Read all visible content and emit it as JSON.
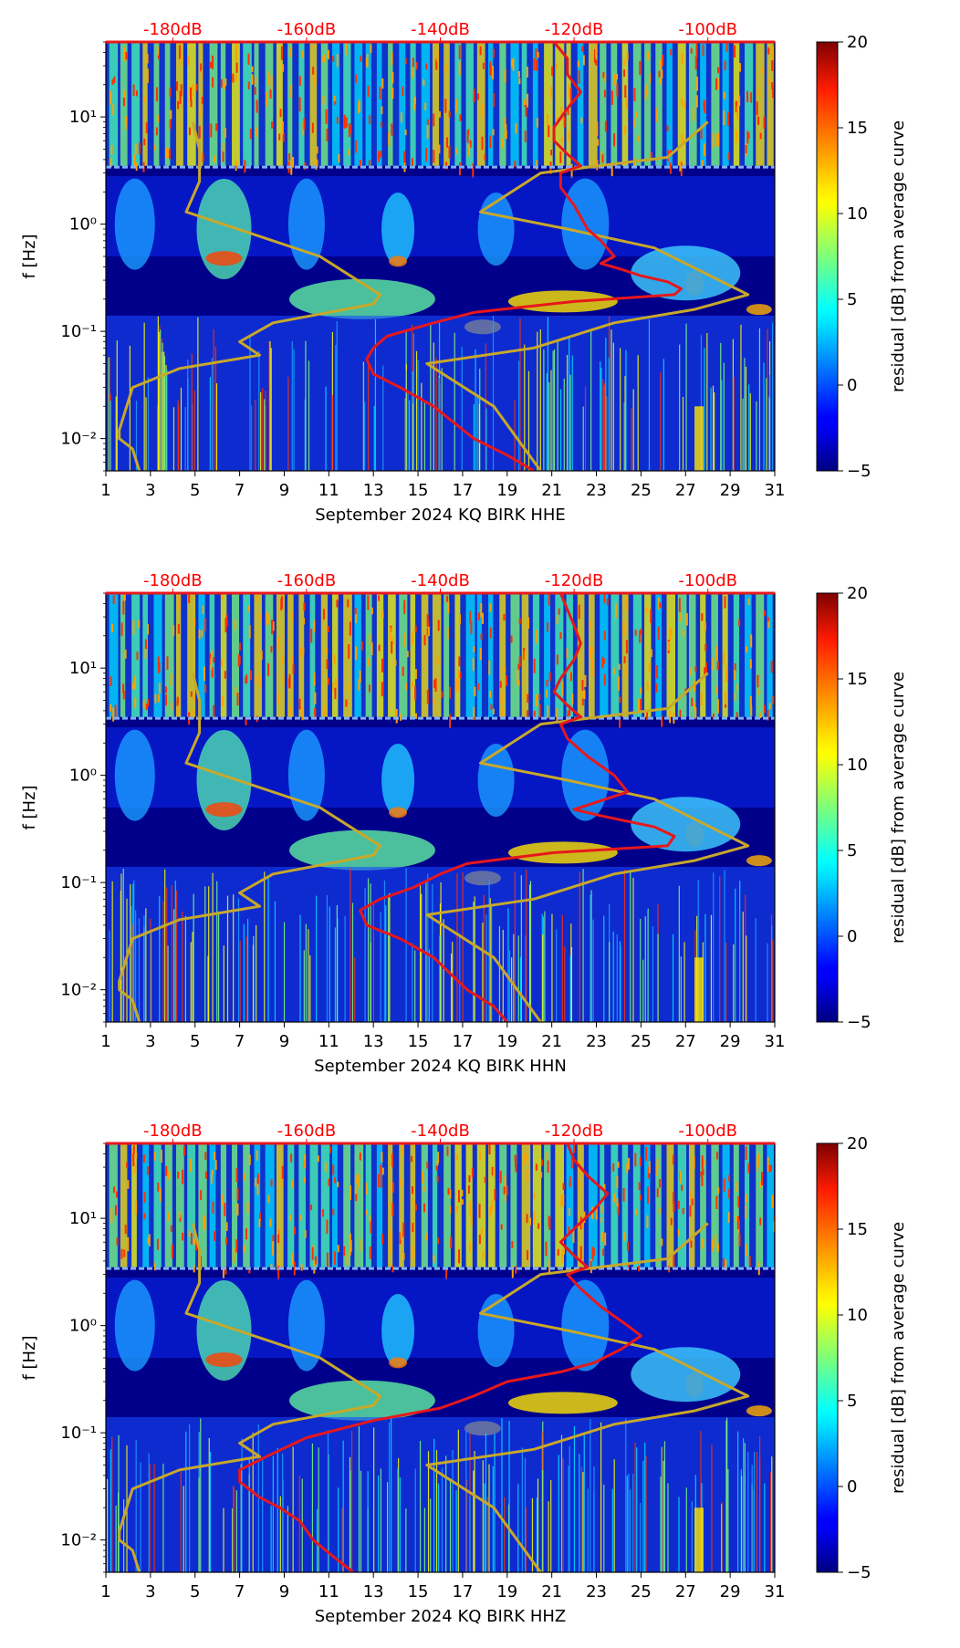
{
  "figure": {
    "colorbar": {
      "label": "residual [dB] from average curve",
      "range": [
        -5,
        20
      ],
      "ticks": [
        "20",
        "15",
        "10",
        "5",
        "0",
        "−5"
      ],
      "tick_values": [
        20,
        15,
        10,
        5,
        0,
        -5
      ],
      "colormap": "jet"
    },
    "colors": {
      "psd_curve": "#e8171b",
      "reference_curve": "#c8a82a",
      "db_labels": "#ff0000",
      "background_dark": "#00008b"
    }
  },
  "chart_data": [
    {
      "type": "heatmap",
      "title": "",
      "xlabel": "September 2024 KQ BIRK  HHE",
      "ylabel": "f [Hz]",
      "x_ticks": [
        "1",
        "3",
        "5",
        "7",
        "9",
        "11",
        "13",
        "15",
        "17",
        "19",
        "21",
        "23",
        "25",
        "27",
        "29",
        "31"
      ],
      "x_range": [
        1,
        31
      ],
      "y_scale": "log",
      "y_range": [
        0.005,
        50
      ],
      "y_ticks": [
        {
          "value": 0.01,
          "label": "10⁻²"
        },
        {
          "value": 0.1,
          "label": "10⁻¹"
        },
        {
          "value": 1,
          "label": "10⁰"
        },
        {
          "value": 10,
          "label": "10¹"
        }
      ],
      "top_axis": {
        "labels": [
          "-180dB",
          "-160dB",
          "-140dB",
          "-120dB",
          "-100dB"
        ],
        "values": [
          -180,
          -160,
          -140,
          -120,
          -100
        ],
        "range": [
          -190,
          -90
        ]
      },
      "psd_curve": {
        "name": "",
        "points": [
          [
            -123,
            50
          ],
          [
            -121,
            35
          ],
          [
            -121,
            25
          ],
          [
            -119,
            17
          ],
          [
            -121,
            12
          ],
          [
            -123,
            8
          ],
          [
            -123,
            6
          ],
          [
            -121,
            4.5
          ],
          [
            -119,
            3.5
          ],
          [
            -122,
            3
          ],
          [
            -122,
            2.2
          ],
          [
            -120,
            1.5
          ],
          [
            -118,
            0.9
          ],
          [
            -116,
            0.7
          ],
          [
            -114,
            0.5
          ],
          [
            -116,
            0.43
          ],
          [
            -113,
            0.38
          ],
          [
            -110,
            0.33
          ],
          [
            -106,
            0.29
          ],
          [
            -104,
            0.25
          ],
          [
            -105,
            0.22
          ],
          [
            -120,
            0.19
          ],
          [
            -135,
            0.15
          ],
          [
            -141,
            0.12
          ],
          [
            -148,
            0.09
          ],
          [
            -150,
            0.07
          ],
          [
            -151,
            0.055
          ],
          [
            -150,
            0.04
          ],
          [
            -146,
            0.03
          ],
          [
            -141,
            0.02
          ],
          [
            -135,
            0.01
          ],
          [
            -130,
            0.007
          ],
          [
            -126,
            0.005
          ]
        ]
      },
      "reference_curve": {
        "name": "",
        "points": [
          [
            -100,
            9
          ],
          [
            -106,
            4.2
          ],
          [
            -125,
            3.0
          ],
          [
            -134,
            1.3
          ],
          [
            -121,
            0.9
          ],
          [
            -108,
            0.6
          ],
          [
            -94,
            0.22
          ],
          [
            -102,
            0.16
          ],
          [
            -114,
            0.12
          ],
          [
            -126,
            0.07
          ],
          [
            -142,
            0.05
          ],
          [
            -132,
            0.02
          ],
          [
            -125,
            0.005
          ]
        ]
      },
      "reference_curve_left": {
        "points": [
          [
            -177,
            9
          ],
          [
            -176,
            5
          ],
          [
            -176,
            2.5
          ],
          [
            -178,
            1.3
          ],
          [
            -158,
            0.5
          ],
          [
            -149,
            0.22
          ],
          [
            -150,
            0.18
          ],
          [
            -165,
            0.12
          ],
          [
            -170,
            0.08
          ],
          [
            -167,
            0.06
          ],
          [
            -179,
            0.045
          ],
          [
            -186,
            0.03
          ],
          [
            -188,
            0.012
          ],
          [
            -188,
            0.01
          ],
          [
            -186,
            0.008
          ],
          [
            -185,
            0.005
          ]
        ]
      }
    },
    {
      "type": "heatmap",
      "title": "",
      "xlabel": "September 2024 KQ BIRK  HHN",
      "ylabel": "f [Hz]",
      "x_ticks": [
        "1",
        "3",
        "5",
        "7",
        "9",
        "11",
        "13",
        "15",
        "17",
        "19",
        "21",
        "23",
        "25",
        "27",
        "29",
        "31"
      ],
      "x_range": [
        1,
        31
      ],
      "y_scale": "log",
      "y_range": [
        0.005,
        50
      ],
      "y_ticks": [
        {
          "value": 0.01,
          "label": "10⁻²"
        },
        {
          "value": 0.1,
          "label": "10⁻¹"
        },
        {
          "value": 1,
          "label": "10⁰"
        },
        {
          "value": 10,
          "label": "10¹"
        }
      ],
      "top_axis": {
        "labels": [
          "-180dB",
          "-160dB",
          "-140dB",
          "-120dB",
          "-100dB"
        ],
        "values": [
          -180,
          -160,
          -140,
          -120,
          -100
        ],
        "range": [
          -190,
          -90
        ]
      },
      "psd_curve": {
        "name": "",
        "points": [
          [
            -122,
            50
          ],
          [
            -121,
            35
          ],
          [
            -120,
            25
          ],
          [
            -119,
            17
          ],
          [
            -120,
            12
          ],
          [
            -122,
            8
          ],
          [
            -123,
            6
          ],
          [
            -121,
            4.5
          ],
          [
            -119,
            3.5
          ],
          [
            -122,
            3
          ],
          [
            -121,
            2.2
          ],
          [
            -118,
            1.5
          ],
          [
            -114,
            1.0
          ],
          [
            -112,
            0.7
          ],
          [
            -120,
            0.48
          ],
          [
            -116,
            0.42
          ],
          [
            -108,
            0.33
          ],
          [
            -105,
            0.27
          ],
          [
            -106,
            0.22
          ],
          [
            -123,
            0.19
          ],
          [
            -136,
            0.15
          ],
          [
            -140,
            0.12
          ],
          [
            -144,
            0.09
          ],
          [
            -149,
            0.07
          ],
          [
            -152,
            0.055
          ],
          [
            -151,
            0.04
          ],
          [
            -146,
            0.03
          ],
          [
            -141,
            0.02
          ],
          [
            -136,
            0.01
          ],
          [
            -132,
            0.007
          ],
          [
            -130,
            0.005
          ]
        ]
      },
      "reference_curve": {
        "name": "",
        "points": [
          [
            -100,
            9
          ],
          [
            -106,
            4.2
          ],
          [
            -125,
            3.0
          ],
          [
            -134,
            1.3
          ],
          [
            -121,
            0.9
          ],
          [
            -108,
            0.6
          ],
          [
            -94,
            0.22
          ],
          [
            -102,
            0.16
          ],
          [
            -114,
            0.12
          ],
          [
            -126,
            0.07
          ],
          [
            -142,
            0.05
          ],
          [
            -132,
            0.02
          ],
          [
            -125,
            0.005
          ]
        ]
      },
      "reference_curve_left": {
        "points": [
          [
            -177,
            9
          ],
          [
            -176,
            5
          ],
          [
            -176,
            2.5
          ],
          [
            -178,
            1.3
          ],
          [
            -158,
            0.5
          ],
          [
            -149,
            0.22
          ],
          [
            -150,
            0.18
          ],
          [
            -165,
            0.12
          ],
          [
            -170,
            0.08
          ],
          [
            -167,
            0.06
          ],
          [
            -179,
            0.045
          ],
          [
            -186,
            0.03
          ],
          [
            -188,
            0.012
          ],
          [
            -188,
            0.01
          ],
          [
            -186,
            0.008
          ],
          [
            -185,
            0.005
          ]
        ]
      }
    },
    {
      "type": "heatmap",
      "title": "",
      "xlabel": "September 2024 KQ BIRK  HHZ",
      "ylabel": "f [Hz]",
      "x_ticks": [
        "1",
        "3",
        "5",
        "7",
        "9",
        "11",
        "13",
        "15",
        "17",
        "19",
        "21",
        "23",
        "25",
        "27",
        "29",
        "31"
      ],
      "x_range": [
        1,
        31
      ],
      "y_scale": "log",
      "y_range": [
        0.005,
        50
      ],
      "y_ticks": [
        {
          "value": 0.01,
          "label": "10⁻²"
        },
        {
          "value": 0.1,
          "label": "10⁻¹"
        },
        {
          "value": 1,
          "label": "10⁰"
        },
        {
          "value": 10,
          "label": "10¹"
        }
      ],
      "top_axis": {
        "labels": [
          "-180dB",
          "-160dB",
          "-140dB",
          "-120dB",
          "-100dB"
        ],
        "values": [
          -180,
          -160,
          -140,
          -120,
          -100
        ],
        "range": [
          -190,
          -90
        ]
      },
      "psd_curve": {
        "name": "",
        "points": [
          [
            -121,
            50
          ],
          [
            -120,
            35
          ],
          [
            -118,
            25
          ],
          [
            -115,
            17
          ],
          [
            -117,
            12
          ],
          [
            -120,
            8
          ],
          [
            -122,
            6
          ],
          [
            -120,
            4.5
          ],
          [
            -118,
            3.5
          ],
          [
            -121,
            3
          ],
          [
            -119,
            2.2
          ],
          [
            -116,
            1.5
          ],
          [
            -112,
            1.0
          ],
          [
            -110,
            0.8
          ],
          [
            -113,
            0.6
          ],
          [
            -117,
            0.45
          ],
          [
            -122,
            0.37
          ],
          [
            -130,
            0.3
          ],
          [
            -135,
            0.22
          ],
          [
            -140,
            0.17
          ],
          [
            -150,
            0.13
          ],
          [
            -160,
            0.09
          ],
          [
            -166,
            0.06
          ],
          [
            -170,
            0.045
          ],
          [
            -170,
            0.035
          ],
          [
            -167,
            0.025
          ],
          [
            -164,
            0.02
          ],
          [
            -161,
            0.015
          ],
          [
            -159,
            0.01
          ],
          [
            -156,
            0.007
          ],
          [
            -153,
            0.005
          ]
        ]
      },
      "reference_curve": {
        "name": "",
        "points": [
          [
            -100,
            9
          ],
          [
            -106,
            4.2
          ],
          [
            -125,
            3.0
          ],
          [
            -134,
            1.3
          ],
          [
            -121,
            0.9
          ],
          [
            -108,
            0.6
          ],
          [
            -94,
            0.22
          ],
          [
            -102,
            0.16
          ],
          [
            -114,
            0.12
          ],
          [
            -126,
            0.07
          ],
          [
            -142,
            0.05
          ],
          [
            -132,
            0.02
          ],
          [
            -125,
            0.005
          ]
        ]
      },
      "reference_curve_left": {
        "points": [
          [
            -177,
            9
          ],
          [
            -176,
            5
          ],
          [
            -176,
            2.5
          ],
          [
            -178,
            1.3
          ],
          [
            -158,
            0.5
          ],
          [
            -149,
            0.22
          ],
          [
            -150,
            0.18
          ],
          [
            -165,
            0.12
          ],
          [
            -170,
            0.08
          ],
          [
            -167,
            0.06
          ],
          [
            -179,
            0.045
          ],
          [
            -186,
            0.03
          ],
          [
            -188,
            0.012
          ],
          [
            -188,
            0.01
          ],
          [
            -186,
            0.008
          ],
          [
            -185,
            0.005
          ]
        ]
      }
    }
  ]
}
